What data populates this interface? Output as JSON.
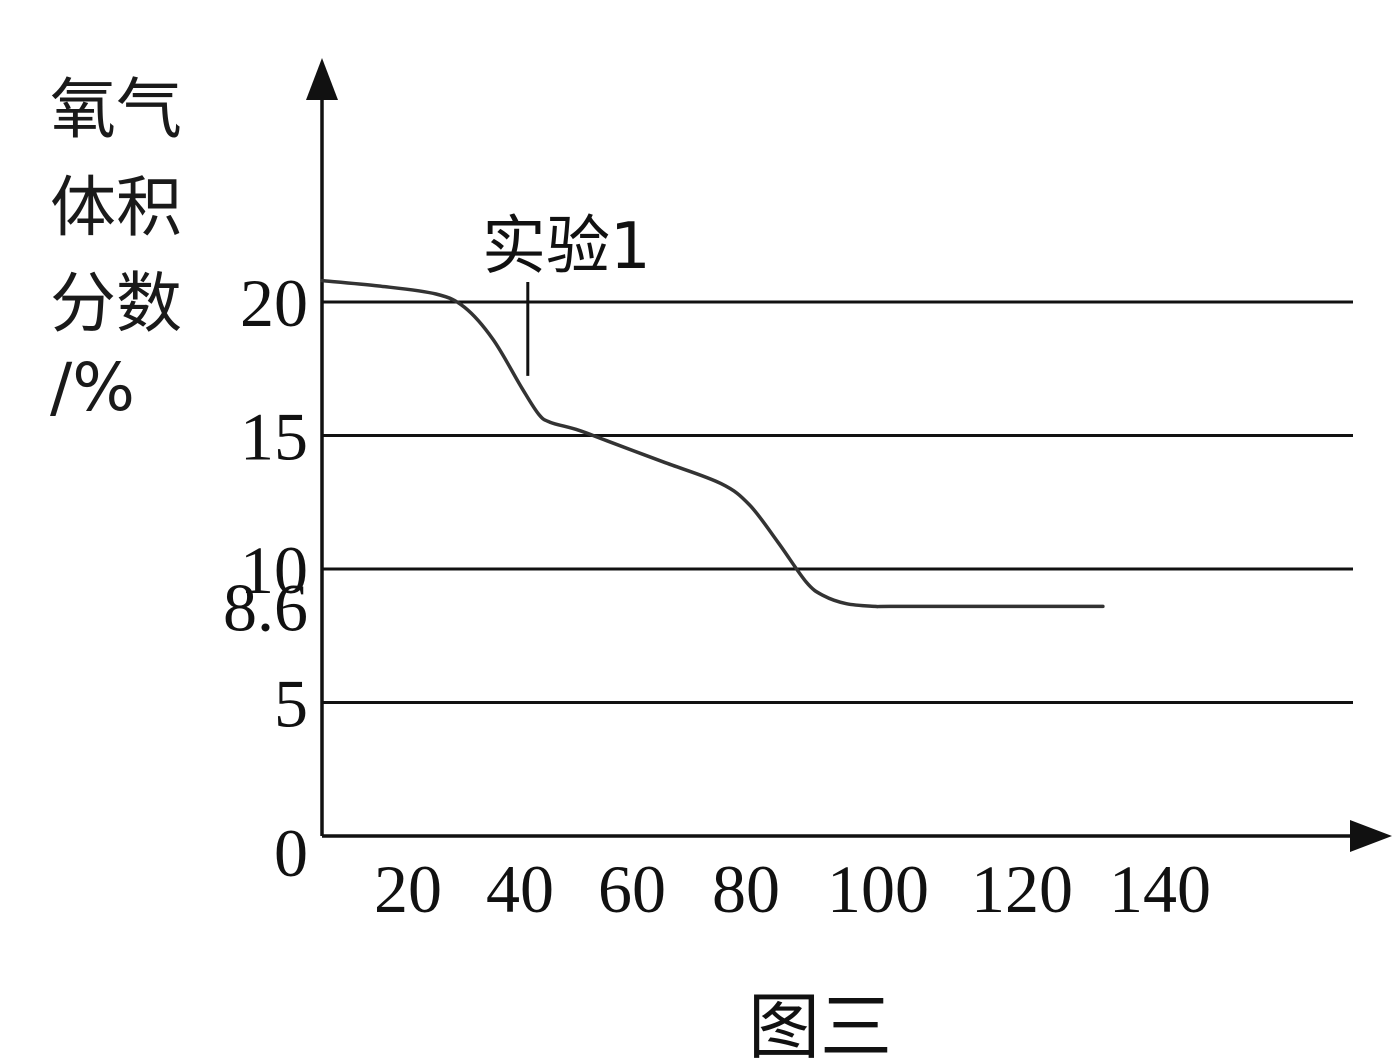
{
  "chart_data": {
    "type": "line",
    "ylabel_lines": [
      "氧气",
      "体积",
      "分数",
      "/%"
    ],
    "xlabel": "",
    "caption": "图三",
    "x_ticks": [
      20,
      40,
      60,
      80,
      100,
      120,
      140
    ],
    "y_ticks": [
      0,
      5,
      8.6,
      10,
      15,
      20
    ],
    "y_gridlines": [
      5,
      10,
      15,
      20
    ],
    "xlim": [
      0,
      180
    ],
    "ylim": [
      0,
      27
    ],
    "grid": true,
    "series": [
      {
        "name": "实验1",
        "x": [
          0,
          10,
          20,
          25,
          30,
          35,
          38,
          40,
          45,
          50,
          60,
          70,
          75,
          80,
          85,
          88,
          92,
          97,
          100,
          120,
          137
        ],
        "y": [
          20.8,
          20.6,
          20.3,
          19.8,
          18.6,
          16.8,
          15.8,
          15.5,
          15.2,
          14.8,
          14.0,
          13.2,
          12.4,
          11.0,
          9.5,
          9.0,
          8.7,
          8.6,
          8.6,
          8.6,
          8.6
        ]
      }
    ],
    "annotations": [
      {
        "text": "实验1",
        "series": "实验1",
        "x": 34
      }
    ],
    "colors": {
      "line": "#111111",
      "curve": "#333333"
    }
  }
}
